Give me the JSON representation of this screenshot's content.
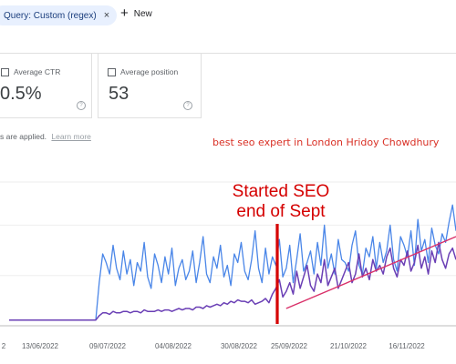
{
  "filters": {
    "query_chip": "Query: Custom (regex)",
    "query_chip_close": "×",
    "new_label": "New",
    "new_icon": "+"
  },
  "metrics": [
    {
      "label": "Average CTR",
      "value": "0.5%",
      "help": "?"
    },
    {
      "label": "Average position",
      "value": "53",
      "help": "?"
    }
  ],
  "filter_note": {
    "text": "s are applied.",
    "link": "Learn more"
  },
  "caption": "best seo expert in London Hridoy Chowdhury",
  "annotation": {
    "line1": "Started SEO",
    "line2": "end of Sept"
  },
  "colors": {
    "clicks": "#4a86e8",
    "impressions": "#6a3fb5",
    "trend": "#d93069",
    "marker": "#d50000"
  },
  "chart_data": {
    "type": "line",
    "x_tick_labels": [
      "2",
      "13/06/2022",
      "09/07/2022",
      "04/08/2022",
      "30/08/2022",
      "25/09/2022",
      "21/10/2022",
      "16/11/2022",
      "1"
    ],
    "grid": true,
    "series": [
      {
        "values": [
          4,
          4,
          4,
          4,
          4,
          4,
          4,
          4,
          4,
          4,
          4,
          4,
          4,
          4,
          4,
          4,
          4,
          4,
          4,
          4,
          4,
          4,
          4,
          4,
          4,
          4,
          30,
          50,
          44,
          36,
          56,
          40,
          32,
          52,
          36,
          46,
          28,
          44,
          38,
          58,
          34,
          26,
          50,
          42,
          30,
          48,
          36,
          54,
          28,
          40,
          46,
          32,
          38,
          52,
          30,
          44,
          62,
          36,
          30,
          48,
          40,
          56,
          34,
          42,
          28,
          50,
          44,
          58,
          38,
          32,
          46,
          66,
          40,
          30,
          54,
          36,
          48,
          42,
          60,
          34,
          40,
          56,
          30,
          46,
          64,
          38,
          44,
          52,
          36,
          58,
          42,
          70,
          40,
          50,
          36,
          60,
          46,
          44,
          38,
          56,
          66,
          42,
          36,
          54,
          48,
          62,
          40,
          58,
          44,
          52,
          70,
          46,
          38,
          62,
          56,
          48,
          66,
          42,
          74,
          52,
          60,
          44,
          68,
          56,
          50,
          64,
          58,
          72,
          84,
          66
        ]
      },
      {
        "values": [
          4,
          4,
          4,
          4,
          4,
          4,
          4,
          4,
          4,
          4,
          4,
          4,
          4,
          4,
          4,
          4,
          4,
          4,
          4,
          4,
          4,
          4,
          4,
          4,
          4,
          4,
          7,
          9,
          9,
          8,
          10,
          9,
          9,
          10,
          10,
          9,
          10,
          10,
          9,
          11,
          10,
          10,
          10,
          11,
          10,
          11,
          11,
          10,
          11,
          12,
          11,
          12,
          12,
          11,
          13,
          13,
          12,
          14,
          13,
          14,
          15,
          14,
          16,
          15,
          17,
          16,
          18,
          17,
          17,
          16,
          18,
          15,
          16,
          17,
          19,
          16,
          22,
          26,
          32,
          20,
          24,
          30,
          22,
          38,
          26,
          34,
          42,
          28,
          24,
          36,
          30,
          46,
          28,
          34,
          40,
          26,
          32,
          38,
          44,
          30,
          36,
          50,
          34,
          40,
          32,
          46,
          38,
          42,
          36,
          48,
          54,
          40,
          34,
          46,
          42,
          52,
          38,
          44,
          56,
          40,
          48,
          36,
          52,
          44,
          58,
          46,
          40,
          50,
          54,
          46
        ]
      }
    ],
    "trend": {
      "from": 0.62,
      "to": 1.0,
      "y_from": 12,
      "y_to": 62
    },
    "marker_at": 0.6
  }
}
